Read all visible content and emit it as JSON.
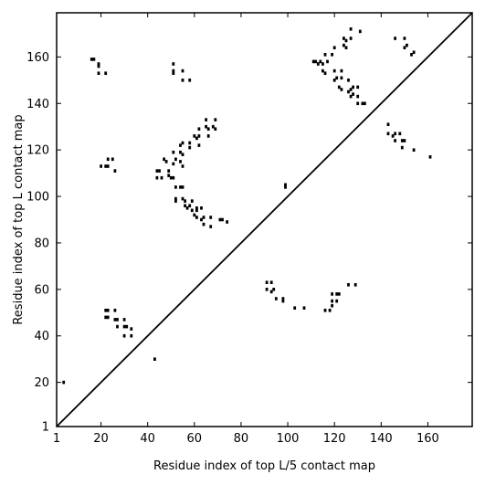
{
  "chart_data": {
    "type": "scatter",
    "title": "",
    "xlabel": "Residue index of top L/5 contact map",
    "ylabel": "Residue index of top L contact map",
    "xlim": [
      1,
      179
    ],
    "ylim": [
      1,
      179
    ],
    "xticks": [
      1,
      20,
      40,
      60,
      80,
      100,
      120,
      140,
      160
    ],
    "yticks": [
      1,
      20,
      40,
      60,
      80,
      100,
      120,
      140,
      160
    ],
    "grid": false,
    "diagonal": true,
    "marker": "small square",
    "colors": {
      "points": "#000000",
      "diagonal": "#000000",
      "frame": "#000000"
    },
    "series": [
      {
        "name": "",
        "points": [
          [
            4,
            20
          ],
          [
            43,
            30
          ],
          [
            22,
            51
          ],
          [
            23,
            51
          ],
          [
            26,
            51
          ],
          [
            22,
            48
          ],
          [
            23,
            48
          ],
          [
            26,
            47
          ],
          [
            27,
            47
          ],
          [
            30,
            47
          ],
          [
            27,
            44
          ],
          [
            30,
            44
          ],
          [
            31,
            44
          ],
          [
            33,
            43
          ],
          [
            30,
            40
          ],
          [
            33,
            40
          ],
          [
            16,
            159
          ],
          [
            17,
            159
          ],
          [
            19,
            157
          ],
          [
            19,
            156
          ],
          [
            19,
            153
          ],
          [
            22,
            153
          ],
          [
            20,
            113
          ],
          [
            22,
            113
          ],
          [
            23,
            113
          ],
          [
            23,
            116
          ],
          [
            25,
            116
          ],
          [
            26,
            111
          ],
          [
            44,
            111
          ],
          [
            45,
            111
          ],
          [
            44,
            108
          ],
          [
            46,
            108
          ],
          [
            47,
            116
          ],
          [
            48,
            115
          ],
          [
            49,
            111
          ],
          [
            49,
            109
          ],
          [
            50,
            108
          ],
          [
            51,
            108
          ],
          [
            51,
            114
          ],
          [
            51,
            119
          ],
          [
            52,
            116
          ],
          [
            52,
            104
          ],
          [
            52,
            99
          ],
          [
            52,
            98
          ],
          [
            54,
            122
          ],
          [
            55,
            123
          ],
          [
            54,
            119
          ],
          [
            55,
            118
          ],
          [
            54,
            115
          ],
          [
            55,
            113
          ],
          [
            54,
            104
          ],
          [
            55,
            104
          ],
          [
            55,
            99
          ],
          [
            56,
            98
          ],
          [
            56,
            96
          ],
          [
            57,
            95
          ],
          [
            58,
            96
          ],
          [
            58,
            123
          ],
          [
            58,
            121
          ],
          [
            59,
            98
          ],
          [
            59,
            94
          ],
          [
            60,
            126
          ],
          [
            61,
            125
          ],
          [
            61,
            95
          ],
          [
            61,
            94
          ],
          [
            60,
            92
          ],
          [
            61,
            91
          ],
          [
            62,
            129
          ],
          [
            62,
            122
          ],
          [
            62,
            126
          ],
          [
            63,
            95
          ],
          [
            63,
            90
          ],
          [
            64,
            91
          ],
          [
            64,
            88
          ],
          [
            65,
            133
          ],
          [
            65,
            130
          ],
          [
            66,
            129
          ],
          [
            66,
            126
          ],
          [
            67,
            91
          ],
          [
            67,
            87
          ],
          [
            68,
            130
          ],
          [
            69,
            133
          ],
          [
            69,
            129
          ],
          [
            71,
            90
          ],
          [
            72,
            90
          ],
          [
            74,
            89
          ],
          [
            51,
            157
          ],
          [
            51,
            154
          ],
          [
            51,
            153
          ],
          [
            55,
            154
          ],
          [
            55,
            150
          ],
          [
            58,
            150
          ],
          [
            91,
            63
          ],
          [
            91,
            60
          ],
          [
            93,
            63
          ],
          [
            93,
            59
          ],
          [
            94,
            60
          ],
          [
            95,
            56
          ],
          [
            98,
            56
          ],
          [
            98,
            55
          ],
          [
            99,
            105
          ],
          [
            99,
            104
          ],
          [
            103,
            52
          ],
          [
            107,
            52
          ],
          [
            111,
            158
          ],
          [
            112,
            158
          ],
          [
            113,
            157
          ],
          [
            114,
            158
          ],
          [
            115,
            157
          ],
          [
            116,
            161
          ],
          [
            115,
            154
          ],
          [
            116,
            153
          ],
          [
            117,
            158
          ],
          [
            116,
            51
          ],
          [
            118,
            51
          ],
          [
            119,
            58
          ],
          [
            119,
            55
          ],
          [
            119,
            53
          ],
          [
            119,
            161
          ],
          [
            120,
            164
          ],
          [
            120,
            154
          ],
          [
            120,
            150
          ],
          [
            121,
            151
          ],
          [
            121,
            58
          ],
          [
            121,
            55
          ],
          [
            122,
            58
          ],
          [
            122,
            147
          ],
          [
            123,
            146
          ],
          [
            123,
            151
          ],
          [
            123,
            154
          ],
          [
            124,
            165
          ],
          [
            124,
            168
          ],
          [
            125,
            164
          ],
          [
            125,
            167
          ],
          [
            126,
            150
          ],
          [
            126,
            145
          ],
          [
            126,
            62
          ],
          [
            127,
            172
          ],
          [
            127,
            168
          ],
          [
            127,
            146
          ],
          [
            127,
            143
          ],
          [
            128,
            144
          ],
          [
            128,
            147
          ],
          [
            129,
            62
          ],
          [
            130,
            143
          ],
          [
            130,
            147
          ],
          [
            130,
            140
          ],
          [
            131,
            171
          ],
          [
            132,
            140
          ],
          [
            133,
            140
          ],
          [
            143,
            131
          ],
          [
            143,
            127
          ],
          [
            145,
            126
          ],
          [
            146,
            127
          ],
          [
            146,
            124
          ],
          [
            146,
            168
          ],
          [
            148,
            127
          ],
          [
            149,
            124
          ],
          [
            149,
            121
          ],
          [
            150,
            124
          ],
          [
            150,
            168
          ],
          [
            150,
            164
          ],
          [
            151,
            165
          ],
          [
            153,
            161
          ],
          [
            154,
            162
          ],
          [
            154,
            120
          ],
          [
            161,
            117
          ]
        ]
      }
    ]
  }
}
